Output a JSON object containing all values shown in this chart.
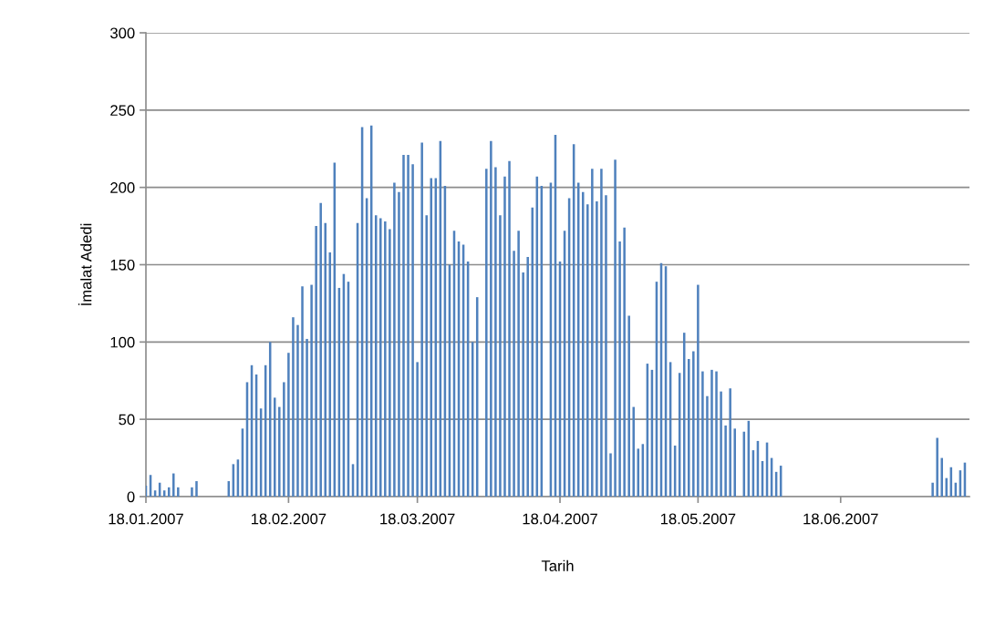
{
  "chart_data": {
    "type": "bar",
    "xlabel": "Tarih",
    "ylabel": "İmalat Adedi",
    "x": [
      "2007-01-18",
      "2007-01-19",
      "2007-01-20",
      "2007-01-21",
      "2007-01-22",
      "2007-01-23",
      "2007-01-24",
      "2007-01-25",
      "2007-01-28",
      "2007-01-29",
      "2007-02-05",
      "2007-02-06",
      "2007-02-07",
      "2007-02-08",
      "2007-02-09",
      "2007-02-10",
      "2007-02-11",
      "2007-02-12",
      "2007-02-13",
      "2007-02-14",
      "2007-02-15",
      "2007-02-16",
      "2007-02-17",
      "2007-02-18",
      "2007-02-19",
      "2007-02-20",
      "2007-02-21",
      "2007-02-22",
      "2007-02-23",
      "2007-02-24",
      "2007-02-25",
      "2007-02-26",
      "2007-02-27",
      "2007-02-28",
      "2007-03-01",
      "2007-03-02",
      "2007-03-03",
      "2007-03-04",
      "2007-03-05",
      "2007-03-06",
      "2007-03-07",
      "2007-03-08",
      "2007-03-09",
      "2007-03-10",
      "2007-03-11",
      "2007-03-12",
      "2007-03-13",
      "2007-03-14",
      "2007-03-15",
      "2007-03-16",
      "2007-03-17",
      "2007-03-18",
      "2007-03-19",
      "2007-03-20",
      "2007-03-21",
      "2007-03-22",
      "2007-03-23",
      "2007-03-24",
      "2007-03-25",
      "2007-03-26",
      "2007-03-27",
      "2007-03-28",
      "2007-03-29",
      "2007-03-30",
      "2007-03-31",
      "2007-04-02",
      "2007-04-03",
      "2007-04-04",
      "2007-04-05",
      "2007-04-06",
      "2007-04-07",
      "2007-04-08",
      "2007-04-09",
      "2007-04-10",
      "2007-04-11",
      "2007-04-12",
      "2007-04-13",
      "2007-04-14",
      "2007-04-16",
      "2007-04-17",
      "2007-04-18",
      "2007-04-19",
      "2007-04-20",
      "2007-04-21",
      "2007-04-22",
      "2007-04-23",
      "2007-04-24",
      "2007-04-25",
      "2007-04-26",
      "2007-04-27",
      "2007-04-28",
      "2007-04-29",
      "2007-04-30",
      "2007-05-01",
      "2007-05-02",
      "2007-05-03",
      "2007-05-04",
      "2007-05-05",
      "2007-05-06",
      "2007-05-07",
      "2007-05-08",
      "2007-05-09",
      "2007-05-10",
      "2007-05-11",
      "2007-05-12",
      "2007-05-13",
      "2007-05-14",
      "2007-05-15",
      "2007-05-16",
      "2007-05-17",
      "2007-05-18",
      "2007-05-19",
      "2007-05-20",
      "2007-05-21",
      "2007-05-22",
      "2007-05-23",
      "2007-05-24",
      "2007-05-25",
      "2007-05-26",
      "2007-05-28",
      "2007-05-29",
      "2007-05-30",
      "2007-05-31",
      "2007-06-01",
      "2007-06-02",
      "2007-06-03",
      "2007-06-04",
      "2007-06-05",
      "2007-07-08",
      "2007-07-09",
      "2007-07-10",
      "2007-07-11",
      "2007-07-12",
      "2007-07-13",
      "2007-07-14",
      "2007-07-15"
    ],
    "values": [
      7,
      14,
      4,
      9,
      4,
      6,
      15,
      6,
      6,
      10,
      10,
      21,
      24,
      44,
      74,
      85,
      79,
      57,
      85,
      100,
      64,
      58,
      74,
      93,
      116,
      111,
      136,
      102,
      137,
      175,
      190,
      177,
      158,
      216,
      135,
      144,
      139,
      21,
      177,
      239,
      193,
      240,
      182,
      180,
      178,
      173,
      203,
      197,
      221,
      221,
      215,
      87,
      229,
      182,
      206,
      206,
      230,
      201,
      150,
      172,
      165,
      163,
      152,
      100,
      129,
      212,
      230,
      213,
      182,
      207,
      217,
      159,
      172,
      145,
      155,
      187,
      207,
      201,
      203,
      234,
      152,
      172,
      193,
      228,
      203,
      197,
      189,
      212,
      191,
      212,
      195,
      28,
      218,
      165,
      174,
      117,
      58,
      31,
      34,
      86,
      82,
      139,
      151,
      149,
      87,
      33,
      80,
      106,
      89,
      94,
      137,
      81,
      65,
      82,
      81,
      68,
      46,
      70,
      44,
      42,
      49,
      30,
      36,
      23,
      35,
      25,
      16,
      20,
      9,
      38,
      25,
      12,
      19,
      9,
      17,
      22
    ],
    "color": "#4f81bd",
    "xlim": [
      "2007-01-18",
      "2007-07-16"
    ],
    "xticks": [
      {
        "value": "2007-01-18",
        "label": "18.01.2007"
      },
      {
        "value": "2007-02-18",
        "label": "18.02.2007"
      },
      {
        "value": "2007-03-18",
        "label": "18.03.2007"
      },
      {
        "value": "2007-04-18",
        "label": "18.04.2007"
      },
      {
        "value": "2007-05-18",
        "label": "18.05.2007"
      },
      {
        "value": "2007-06-18",
        "label": "18.06.2007"
      }
    ],
    "ylim": [
      0,
      300
    ],
    "yticks": [
      0,
      50,
      100,
      150,
      200,
      250,
      300
    ],
    "grid": "y"
  }
}
